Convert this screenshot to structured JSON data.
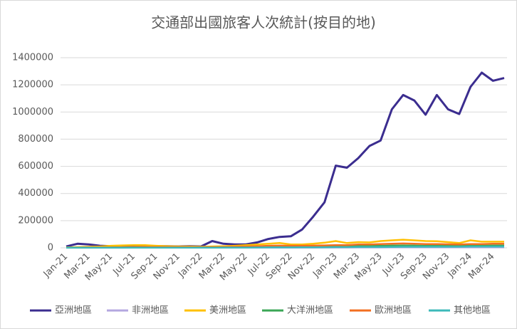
{
  "chart_data": {
    "type": "line",
    "title": "交通部出國旅客人次統計(按目的地)",
    "categories": [
      "Jan-21",
      null,
      "Mar-21",
      null,
      "May-21",
      null,
      "Jul-21",
      null,
      "Sep-21",
      null,
      "Nov-21",
      null,
      "Jan-22",
      null,
      "Mar-22",
      null,
      "May-22",
      null,
      "Jul-22",
      null,
      "Sep-22",
      null,
      "Nov-22",
      null,
      "Jan-23",
      null,
      "Mar-23",
      null,
      "May-23",
      null,
      "Jul-23",
      null,
      "Sep-23",
      null,
      "Nov-23",
      null,
      "Jan-24",
      null,
      "Mar-24",
      null
    ],
    "series": [
      {
        "name": "亞洲地區",
        "color": "#3b2d8f",
        "values": [
          10000,
          30000,
          25000,
          15000,
          12000,
          10000,
          12000,
          15000,
          12000,
          12000,
          10000,
          12000,
          10000,
          50000,
          30000,
          25000,
          25000,
          40000,
          65000,
          80000,
          85000,
          135000,
          230000,
          335000,
          605000,
          590000,
          660000,
          750000,
          790000,
          1020000,
          1125000,
          1085000,
          980000,
          1125000,
          1020000,
          985000,
          1185000,
          1290000,
          1230000,
          1250000
        ]
      },
      {
        "name": "非洲地區",
        "color": "#b4a7e0",
        "values": [
          500,
          500,
          500,
          500,
          500,
          500,
          800,
          800,
          800,
          800,
          800,
          800,
          800,
          800,
          1000,
          1000,
          1000,
          1200,
          1500,
          1500,
          1500,
          1500,
          1800,
          2000,
          2000,
          2000,
          2500,
          2500,
          2500,
          3000,
          3000,
          3000,
          3000,
          3000,
          3000,
          3000,
          3000,
          3000,
          3000,
          3000
        ]
      },
      {
        "name": "美洲地區",
        "color": "#ffc000",
        "values": [
          3000,
          5000,
          8000,
          10000,
          15000,
          18000,
          20000,
          20000,
          15000,
          12000,
          10000,
          10000,
          8000,
          10000,
          12000,
          15000,
          20000,
          25000,
          30000,
          35000,
          25000,
          25000,
          30000,
          38000,
          50000,
          35000,
          42000,
          40000,
          50000,
          55000,
          60000,
          55000,
          50000,
          48000,
          42000,
          35000,
          55000,
          45000,
          45000,
          45000
        ]
      },
      {
        "name": "大洋洲地區",
        "color": "#3aa655",
        "values": [
          1000,
          1000,
          1500,
          1500,
          1500,
          2000,
          2000,
          2500,
          2500,
          2500,
          2500,
          2500,
          2000,
          2500,
          3000,
          4000,
          5000,
          6000,
          7000,
          8000,
          8000,
          8000,
          9000,
          10000,
          12000,
          12000,
          14000,
          14000,
          15000,
          16000,
          17000,
          16000,
          15000,
          15000,
          14000,
          14000,
          16000,
          16000,
          16000,
          16000
        ]
      },
      {
        "name": "歐洲地區",
        "color": "#f36f21",
        "values": [
          2000,
          2000,
          3000,
          3000,
          3000,
          4000,
          5000,
          6000,
          6000,
          5000,
          5000,
          5000,
          4000,
          5000,
          6000,
          8000,
          10000,
          12000,
          15000,
          16000,
          15000,
          15000,
          16000,
          18000,
          20000,
          20000,
          25000,
          25000,
          28000,
          30000,
          32000,
          30000,
          28000,
          28000,
          26000,
          25000,
          28000,
          28000,
          30000,
          30000
        ]
      },
      {
        "name": "其他地區",
        "color": "#3cb9b9",
        "values": [
          1000,
          1000,
          1000,
          1000,
          1000,
          1000,
          1500,
          1500,
          1500,
          1500,
          1500,
          1500,
          1500,
          1500,
          2000,
          2000,
          2000,
          2500,
          3000,
          3000,
          3000,
          3500,
          4000,
          4000,
          5000,
          5000,
          6000,
          6000,
          6000,
          7000,
          8000,
          8000,
          8000,
          8000,
          8000,
          8000,
          9000,
          9000,
          9000,
          9000
        ]
      }
    ],
    "ylim": [
      0,
      1400000
    ],
    "yticks": [
      0,
      200000,
      400000,
      600000,
      800000,
      1000000,
      1200000,
      1400000
    ],
    "grid": true,
    "legend": "bottom"
  }
}
